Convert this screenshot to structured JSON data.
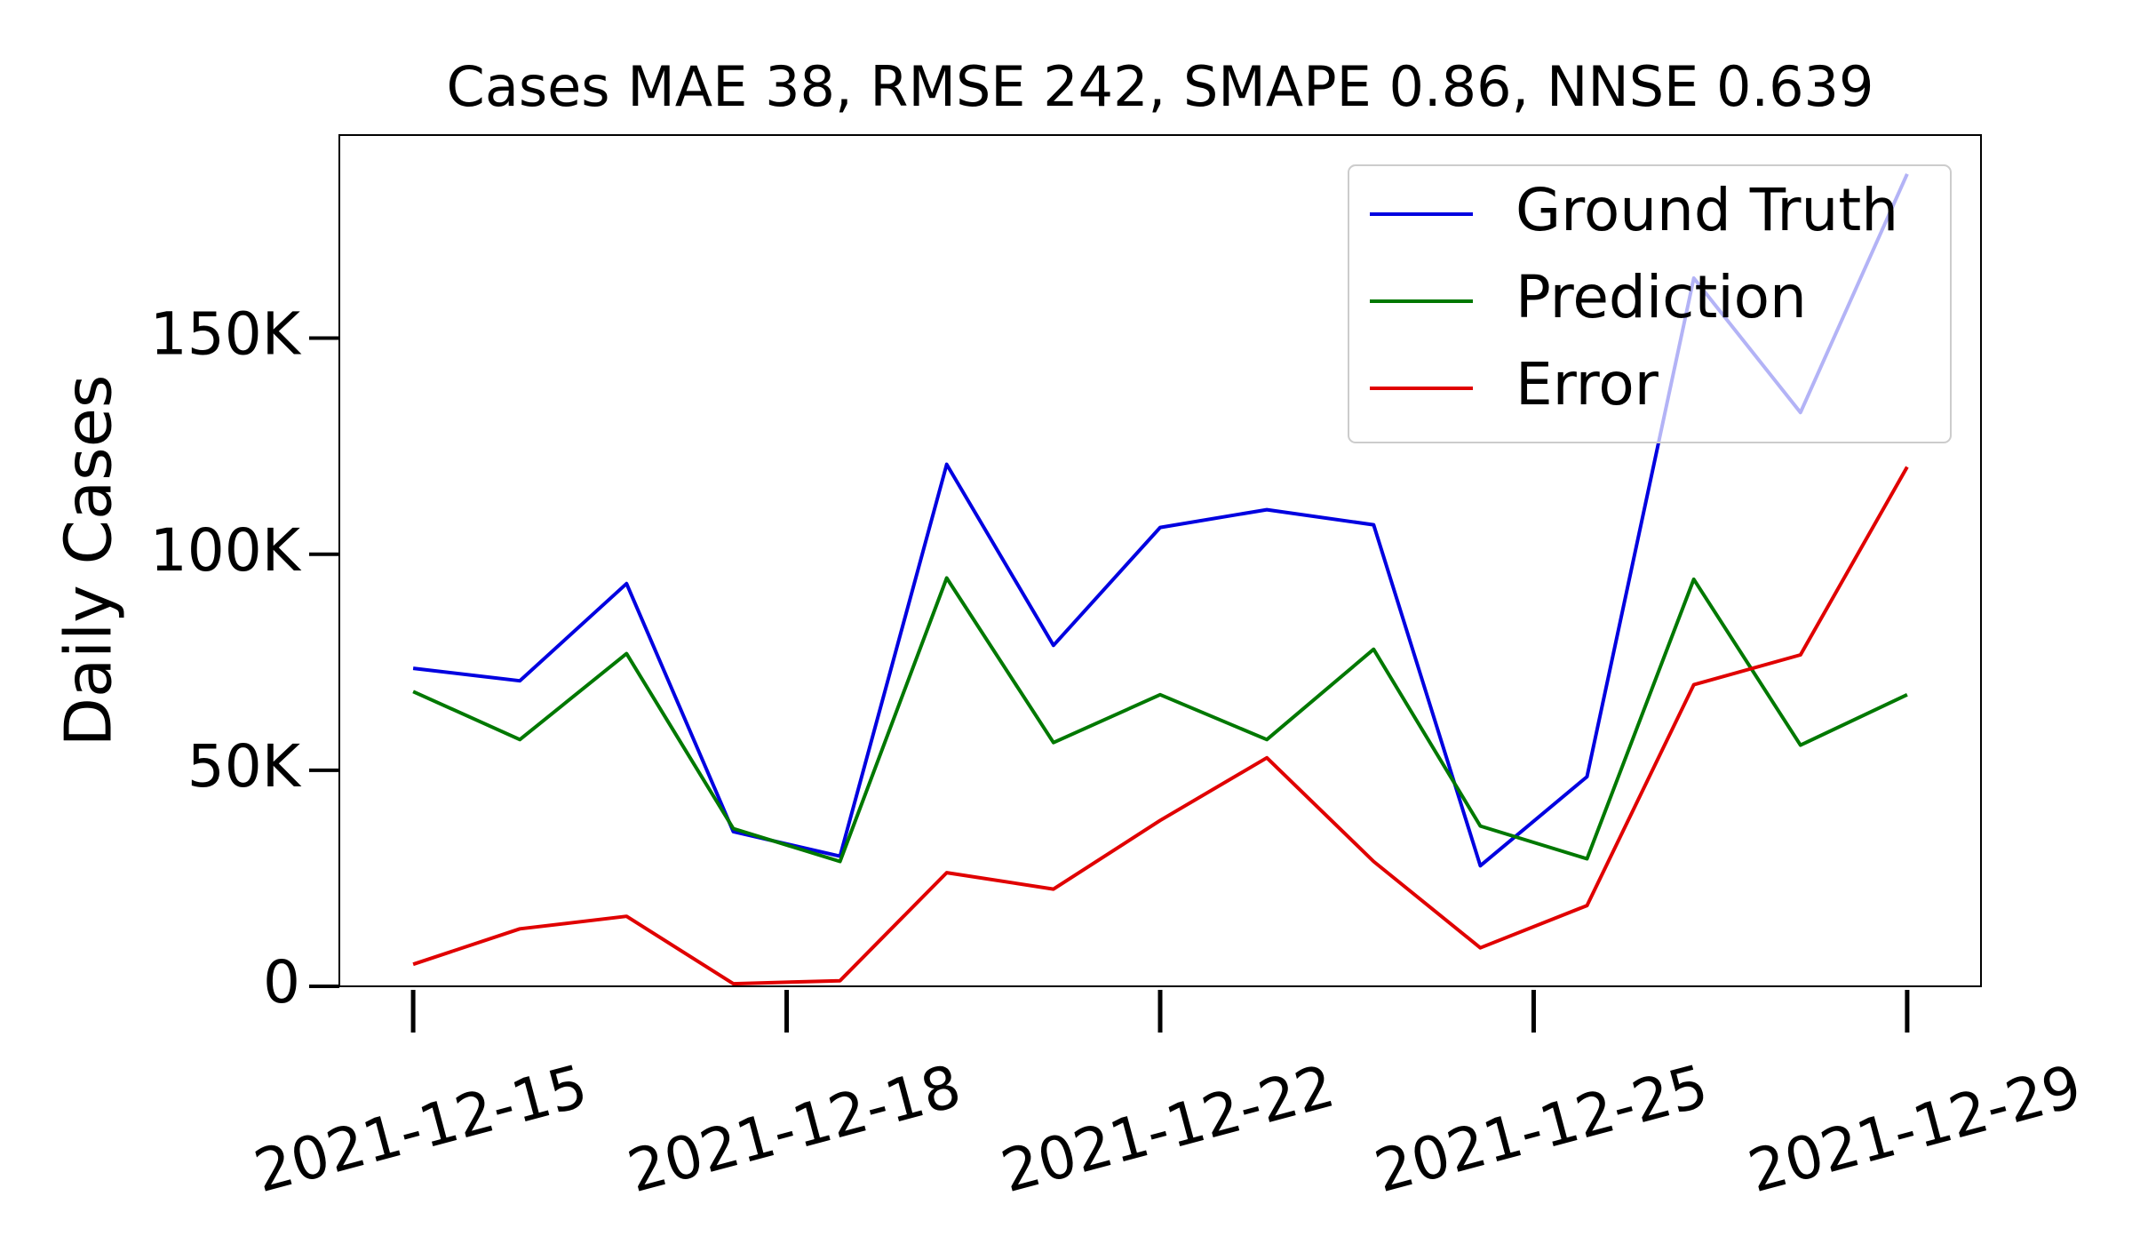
{
  "chart_data": {
    "type": "line",
    "title": "Cases MAE 38, RMSE 242, SMAPE 0.86, NNSE 0.639",
    "ylabel": "Daily Cases",
    "x": [
      "2021-12-15",
      "2021-12-16",
      "2021-12-17",
      "2021-12-18",
      "2021-12-19",
      "2021-12-20",
      "2021-12-21",
      "2021-12-22",
      "2021-12-23",
      "2021-12-24",
      "2021-12-25",
      "2021-12-26",
      "2021-12-27",
      "2021-12-28",
      "2021-12-29"
    ],
    "series": [
      {
        "name": "Ground Truth",
        "color": "#0000e0",
        "values": [
          73600,
          70700,
          93200,
          35800,
          30100,
          120800,
          78900,
          106200,
          110300,
          106800,
          27900,
          48500,
          163900,
          132800,
          188000
        ]
      },
      {
        "name": "Prediction",
        "color": "#007800",
        "values": [
          68200,
          57100,
          77000,
          36500,
          28900,
          94500,
          56400,
          67500,
          57100,
          78000,
          37100,
          29500,
          94200,
          55800,
          67500
        ]
      },
      {
        "name": "Error",
        "color": "#e00000",
        "values": [
          5100,
          13300,
          16200,
          600,
          1300,
          26300,
          22500,
          38400,
          52900,
          28900,
          8900,
          18700,
          69800,
          76700,
          120200
        ]
      }
    ],
    "xlim": [
      "2021-12-14T07:24",
      "2021-12-29T16:36"
    ],
    "xticks": [
      {
        "value": "2021-12-15T00:00",
        "label": "2021-12-15"
      },
      {
        "value": "2021-12-18T12:00",
        "label": "2021-12-18"
      },
      {
        "value": "2021-12-22T00:00",
        "label": "2021-12-22"
      },
      {
        "value": "2021-12-25T12:00",
        "label": "2021-12-25"
      },
      {
        "value": "2021-12-29T00:00",
        "label": "2021-12-29"
      }
    ],
    "ylim": [
      0,
      197000
    ],
    "yticks": [
      0,
      {
        "value": 50000,
        "label": "50K"
      },
      {
        "value": 100000,
        "label": "100K"
      },
      {
        "value": 150000,
        "label": "150K"
      }
    ],
    "legend": "upper right"
  }
}
